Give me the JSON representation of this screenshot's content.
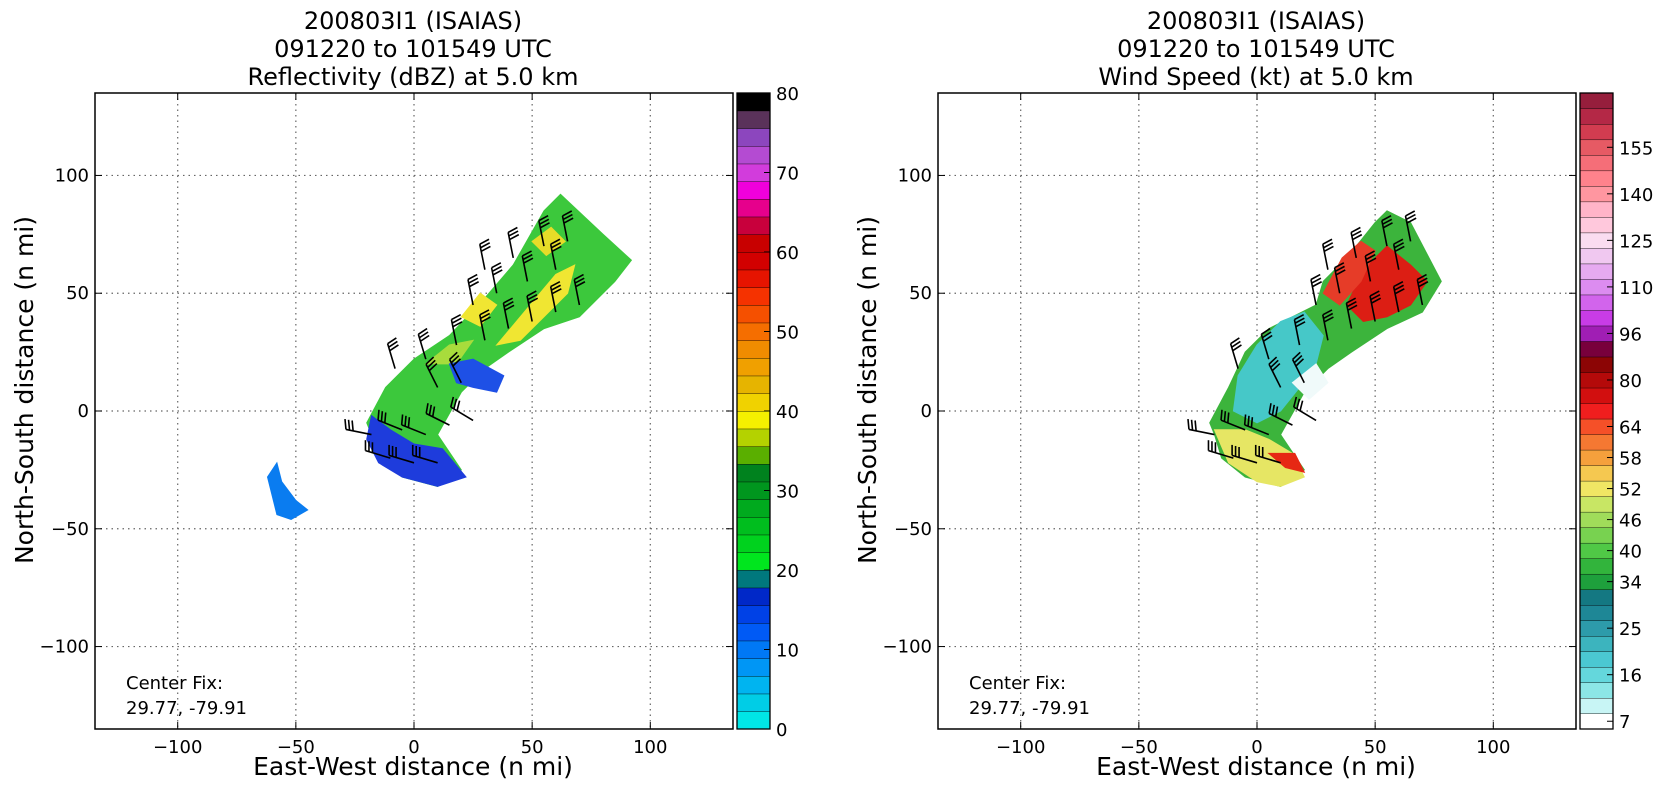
{
  "chart_data": [
    {
      "type": "heatmap",
      "title_lines": [
        "200803I1 (ISAIAS)",
        "091220 to 101549 UTC",
        "Reflectivity (dBZ) at 5.0 km"
      ],
      "xlabel": "East-West distance (n mi)",
      "ylabel": "North-South distance (n mi)",
      "xlim": [
        -135,
        135
      ],
      "ylim": [
        -135,
        135
      ],
      "xticks": [
        -100,
        -50,
        0,
        50,
        100
      ],
      "yticks": [
        -100,
        -50,
        0,
        50,
        100
      ],
      "xtick_labels": [
        "−100",
        "−50",
        "0",
        "50",
        "100"
      ],
      "ytick_labels": [
        "−100",
        "−50",
        "0",
        "50",
        "100"
      ],
      "grid": true,
      "center_fix_label": "Center Fix:",
      "center_fix_value": "29.77, -79.91",
      "colorbar": {
        "min": 0,
        "max": 80,
        "ticks": [
          0,
          10,
          20,
          30,
          40,
          50,
          60,
          70,
          80
        ],
        "labels": [
          "0",
          "10",
          "20",
          "30",
          "40",
          "50",
          "60",
          "70",
          "80"
        ],
        "colors": [
          "#00e6e6",
          "#00cde6",
          "#00b4f0",
          "#0096f5",
          "#0078f5",
          "#005af5",
          "#0041e6",
          "#0028c8",
          "#00787d",
          "#00e61e",
          "#00d21e",
          "#00be1e",
          "#00aa1e",
          "#00961e",
          "#00821e",
          "#5aaf00",
          "#b4d200",
          "#f5f000",
          "#f0d200",
          "#e6b400",
          "#f0a000",
          "#f08c00",
          "#f56e00",
          "#f55000",
          "#f53200",
          "#e61400",
          "#d20000",
          "#c80000",
          "#c8003c",
          "#e6008c",
          "#f000dc",
          "#d23cdc",
          "#b44bd2",
          "#8c46be",
          "#5a325a",
          "#000000"
        ]
      },
      "regions": [
        {
          "name": "main-band",
          "color": "#3cc83c",
          "points": [
            [
              -20,
              -5
            ],
            [
              -12,
              10
            ],
            [
              0,
              22
            ],
            [
              15,
              32
            ],
            [
              30,
              48
            ],
            [
              42,
              62
            ],
            [
              55,
              85
            ],
            [
              62,
              92
            ],
            [
              80,
              75
            ],
            [
              92,
              64
            ],
            [
              85,
              55
            ],
            [
              70,
              40
            ],
            [
              55,
              35
            ],
            [
              40,
              25
            ],
            [
              30,
              18
            ],
            [
              20,
              8
            ],
            [
              10,
              -10
            ],
            [
              20,
              -25
            ],
            [
              10,
              -32
            ],
            [
              -5,
              -28
            ],
            [
              -15,
              -20
            ],
            [
              -18,
              -10
            ]
          ]
        },
        {
          "name": "inner-yellow-1",
          "color": "#f0e632",
          "points": [
            [
              35,
              28
            ],
            [
              45,
              40
            ],
            [
              55,
              52
            ],
            [
              60,
              58
            ],
            [
              68,
              62
            ],
            [
              65,
              50
            ],
            [
              55,
              40
            ],
            [
              45,
              30
            ]
          ]
        },
        {
          "name": "inner-yellow-2",
          "color": "#f0e632",
          "points": [
            [
              20,
              40
            ],
            [
              28,
              50
            ],
            [
              35,
              45
            ],
            [
              28,
              36
            ]
          ]
        },
        {
          "name": "inner-yellow-3",
          "color": "#e6dc28",
          "points": [
            [
              50,
              72
            ],
            [
              58,
              78
            ],
            [
              64,
              72
            ],
            [
              56,
              66
            ]
          ]
        },
        {
          "name": "inner-lightgreen",
          "color": "#a8dc3c",
          "points": [
            [
              5,
              20
            ],
            [
              15,
              28
            ],
            [
              25,
              30
            ],
            [
              18,
              20
            ]
          ]
        },
        {
          "name": "south-blue",
          "color": "#1e3cdc",
          "points": [
            [
              -18,
              -2
            ],
            [
              -10,
              -8
            ],
            [
              0,
              -14
            ],
            [
              12,
              -16
            ],
            [
              22,
              -28
            ],
            [
              10,
              -32
            ],
            [
              -5,
              -28
            ],
            [
              -15,
              -22
            ],
            [
              -20,
              -12
            ]
          ]
        },
        {
          "name": "east-blue",
          "color": "#1e50e6",
          "points": [
            [
              15,
              20
            ],
            [
              25,
              22
            ],
            [
              38,
              15
            ],
            [
              35,
              8
            ],
            [
              25,
              10
            ],
            [
              18,
              12
            ]
          ]
        },
        {
          "name": "isolated-cell",
          "color": "#0a7cf0",
          "points": [
            [
              -62,
              -28
            ],
            [
              -58,
              -22
            ],
            [
              -56,
              -30
            ],
            [
              -50,
              -38
            ],
            [
              -45,
              -42
            ],
            [
              -52,
              -46
            ],
            [
              -58,
              -44
            ],
            [
              -60,
              -36
            ]
          ]
        }
      ],
      "barbs": [
        {
          "x": -18,
          "y": -10,
          "u": -1,
          "v": 0.2
        },
        {
          "x": -10,
          "y": -20,
          "u": -1,
          "v": 0.3
        },
        {
          "x": 0,
          "y": -22,
          "u": -1,
          "v": 0.3
        },
        {
          "x": 10,
          "y": -22,
          "u": -1,
          "v": 0.3
        },
        {
          "x": -5,
          "y": -8,
          "u": -1,
          "v": 0.4
        },
        {
          "x": 5,
          "y": -10,
          "u": -1,
          "v": 0.4
        },
        {
          "x": 15,
          "y": -6,
          "u": -1,
          "v": 0.5
        },
        {
          "x": 25,
          "y": -4,
          "u": -1,
          "v": 0.6
        },
        {
          "x": -8,
          "y": 18,
          "u": -0.3,
          "v": 1
        },
        {
          "x": 5,
          "y": 22,
          "u": -0.3,
          "v": 1
        },
        {
          "x": 18,
          "y": 28,
          "u": -0.2,
          "v": 1
        },
        {
          "x": 30,
          "y": 30,
          "u": -0.2,
          "v": 1
        },
        {
          "x": 40,
          "y": 35,
          "u": -0.2,
          "v": 1
        },
        {
          "x": 50,
          "y": 38,
          "u": -0.2,
          "v": 1
        },
        {
          "x": 60,
          "y": 42,
          "u": -0.2,
          "v": 1
        },
        {
          "x": 70,
          "y": 45,
          "u": -0.2,
          "v": 1
        },
        {
          "x": 25,
          "y": 45,
          "u": -0.2,
          "v": 1
        },
        {
          "x": 35,
          "y": 50,
          "u": -0.2,
          "v": 1
        },
        {
          "x": 48,
          "y": 55,
          "u": -0.2,
          "v": 1
        },
        {
          "x": 60,
          "y": 60,
          "u": -0.2,
          "v": 1
        },
        {
          "x": 30,
          "y": 60,
          "u": -0.2,
          "v": 1
        },
        {
          "x": 42,
          "y": 65,
          "u": -0.2,
          "v": 1
        },
        {
          "x": 55,
          "y": 70,
          "u": -0.2,
          "v": 1
        },
        {
          "x": 65,
          "y": 72,
          "u": -0.2,
          "v": 1
        },
        {
          "x": 10,
          "y": 10,
          "u": -0.5,
          "v": 1
        },
        {
          "x": 20,
          "y": 12,
          "u": -0.5,
          "v": 1
        }
      ]
    },
    {
      "type": "heatmap",
      "title_lines": [
        "200803I1 (ISAIAS)",
        "091220 to 101549 UTC",
        "Wind Speed (kt) at 5.0 km"
      ],
      "xlabel": "East-West distance (n mi)",
      "ylabel": "North-South distance (n mi)",
      "xlim": [
        -135,
        135
      ],
      "ylim": [
        -135,
        135
      ],
      "xticks": [
        -100,
        -50,
        0,
        50,
        100
      ],
      "yticks": [
        -100,
        -50,
        0,
        50,
        100
      ],
      "xtick_labels": [
        "−100",
        "−50",
        "0",
        "50",
        "100"
      ],
      "ytick_labels": [
        "−100",
        "−50",
        "0",
        "50",
        "100"
      ],
      "grid": true,
      "center_fix_label": "Center Fix:",
      "center_fix_value": "29.77, -79.91",
      "colorbar": {
        "labels": [
          "7",
          "16",
          "25",
          "34",
          "40",
          "46",
          "52",
          "58",
          "64",
          "80",
          "96",
          "110",
          "125",
          "140",
          "155"
        ],
        "label_positions": [
          0.5,
          3.5,
          6.5,
          9.5,
          11.5,
          13.5,
          15.5,
          17.5,
          19.5,
          22.5,
          25.5,
          28.5,
          31.5,
          34.5,
          37.5
        ],
        "colors": [
          "#ffffff",
          "#c8f5f5",
          "#8ce6e6",
          "#64d7dc",
          "#4bc8d2",
          "#3cb4be",
          "#2d9baa",
          "#1e8796",
          "#147882",
          "#1ea03c",
          "#32b43c",
          "#50c846",
          "#78d250",
          "#a0dc5a",
          "#c8e664",
          "#f0e664",
          "#f5c850",
          "#f5a03c",
          "#f57832",
          "#f55028",
          "#f01e1e",
          "#d20f0f",
          "#b40a0a",
          "#8c0505",
          "#78003c",
          "#a01eb4",
          "#c83ce6",
          "#d264ec",
          "#dc8cf0",
          "#e6aaf0",
          "#f0c8f0",
          "#fadcf0",
          "#ffc8dc",
          "#ffb4c8",
          "#ff96a0",
          "#ff828c",
          "#f56e78",
          "#e65a64",
          "#d23c50",
          "#b42846",
          "#961e3c"
        ]
      },
      "regions": [
        {
          "name": "main-band",
          "color": "#3cb43c",
          "points": [
            [
              -20,
              -5
            ],
            [
              -12,
              10
            ],
            [
              -5,
              25
            ],
            [
              5,
              35
            ],
            [
              15,
              40
            ],
            [
              25,
              45
            ],
            [
              28,
              55
            ],
            [
              38,
              65
            ],
            [
              50,
              80
            ],
            [
              55,
              85
            ],
            [
              65,
              80
            ],
            [
              78,
              55
            ],
            [
              70,
              42
            ],
            [
              55,
              35
            ],
            [
              40,
              25
            ],
            [
              30,
              18
            ],
            [
              20,
              8
            ],
            [
              10,
              -10
            ],
            [
              20,
              -25
            ],
            [
              10,
              -32
            ],
            [
              -5,
              -28
            ],
            [
              -15,
              -20
            ],
            [
              -18,
              -10
            ]
          ]
        },
        {
          "name": "cyan-region",
          "color": "#46c8c8",
          "points": [
            [
              -10,
              0
            ],
            [
              -8,
              15
            ],
            [
              0,
              28
            ],
            [
              10,
              38
            ],
            [
              20,
              42
            ],
            [
              28,
              32
            ],
            [
              25,
              20
            ],
            [
              18,
              10
            ],
            [
              10,
              0
            ],
            [
              0,
              -5
            ]
          ]
        },
        {
          "name": "white-core",
          "color": "#f0fafa",
          "points": [
            [
              15,
              12
            ],
            [
              25,
              20
            ],
            [
              30,
              12
            ],
            [
              22,
              5
            ]
          ]
        },
        {
          "name": "red-north",
          "color": "#dc1e14",
          "points": [
            [
              38,
              45
            ],
            [
              45,
              60
            ],
            [
              55,
              70
            ],
            [
              65,
              62
            ],
            [
              72,
              55
            ],
            [
              65,
              45
            ],
            [
              55,
              40
            ],
            [
              45,
              38
            ]
          ]
        },
        {
          "name": "red-north-2",
          "color": "#e63c28",
          "points": [
            [
              28,
              50
            ],
            [
              36,
              65
            ],
            [
              44,
              72
            ],
            [
              50,
              68
            ],
            [
              44,
              55
            ],
            [
              35,
              45
            ]
          ]
        },
        {
          "name": "yellow-south",
          "color": "#e6e664",
          "points": [
            [
              -18,
              -8
            ],
            [
              -12,
              -22
            ],
            [
              0,
              -30
            ],
            [
              10,
              -32
            ],
            [
              20,
              -28
            ],
            [
              15,
              -18
            ],
            [
              5,
              -12
            ],
            [
              -5,
              -8
            ]
          ]
        },
        {
          "name": "red-south",
          "color": "#e62814",
          "points": [
            [
              5,
              -18
            ],
            [
              12,
              -24
            ],
            [
              20,
              -26
            ],
            [
              16,
              -18
            ]
          ]
        }
      ],
      "barbs": [
        {
          "x": -18,
          "y": -10,
          "u": -1,
          "v": 0.2
        },
        {
          "x": -10,
          "y": -20,
          "u": -1,
          "v": 0.3
        },
        {
          "x": 0,
          "y": -22,
          "u": -1,
          "v": 0.3
        },
        {
          "x": 10,
          "y": -22,
          "u": -1,
          "v": 0.3
        },
        {
          "x": -5,
          "y": -8,
          "u": -1,
          "v": 0.4
        },
        {
          "x": 5,
          "y": -10,
          "u": -1,
          "v": 0.4
        },
        {
          "x": 15,
          "y": -6,
          "u": -1,
          "v": 0.5
        },
        {
          "x": 25,
          "y": -4,
          "u": -1,
          "v": 0.6
        },
        {
          "x": -8,
          "y": 18,
          "u": -0.3,
          "v": 1
        },
        {
          "x": 5,
          "y": 22,
          "u": -0.3,
          "v": 1
        },
        {
          "x": 18,
          "y": 28,
          "u": -0.2,
          "v": 1
        },
        {
          "x": 30,
          "y": 30,
          "u": -0.2,
          "v": 1
        },
        {
          "x": 40,
          "y": 35,
          "u": -0.2,
          "v": 1
        },
        {
          "x": 50,
          "y": 38,
          "u": -0.2,
          "v": 1
        },
        {
          "x": 60,
          "y": 42,
          "u": -0.2,
          "v": 1
        },
        {
          "x": 70,
          "y": 45,
          "u": -0.2,
          "v": 1
        },
        {
          "x": 25,
          "y": 45,
          "u": -0.2,
          "v": 1
        },
        {
          "x": 35,
          "y": 50,
          "u": -0.2,
          "v": 1
        },
        {
          "x": 48,
          "y": 55,
          "u": -0.2,
          "v": 1
        },
        {
          "x": 60,
          "y": 60,
          "u": -0.2,
          "v": 1
        },
        {
          "x": 30,
          "y": 60,
          "u": -0.2,
          "v": 1
        },
        {
          "x": 42,
          "y": 65,
          "u": -0.2,
          "v": 1
        },
        {
          "x": 55,
          "y": 70,
          "u": -0.2,
          "v": 1
        },
        {
          "x": 65,
          "y": 72,
          "u": -0.2,
          "v": 1
        },
        {
          "x": 10,
          "y": 10,
          "u": -0.5,
          "v": 1
        },
        {
          "x": 20,
          "y": 12,
          "u": -0.5,
          "v": 1
        }
      ]
    }
  ]
}
